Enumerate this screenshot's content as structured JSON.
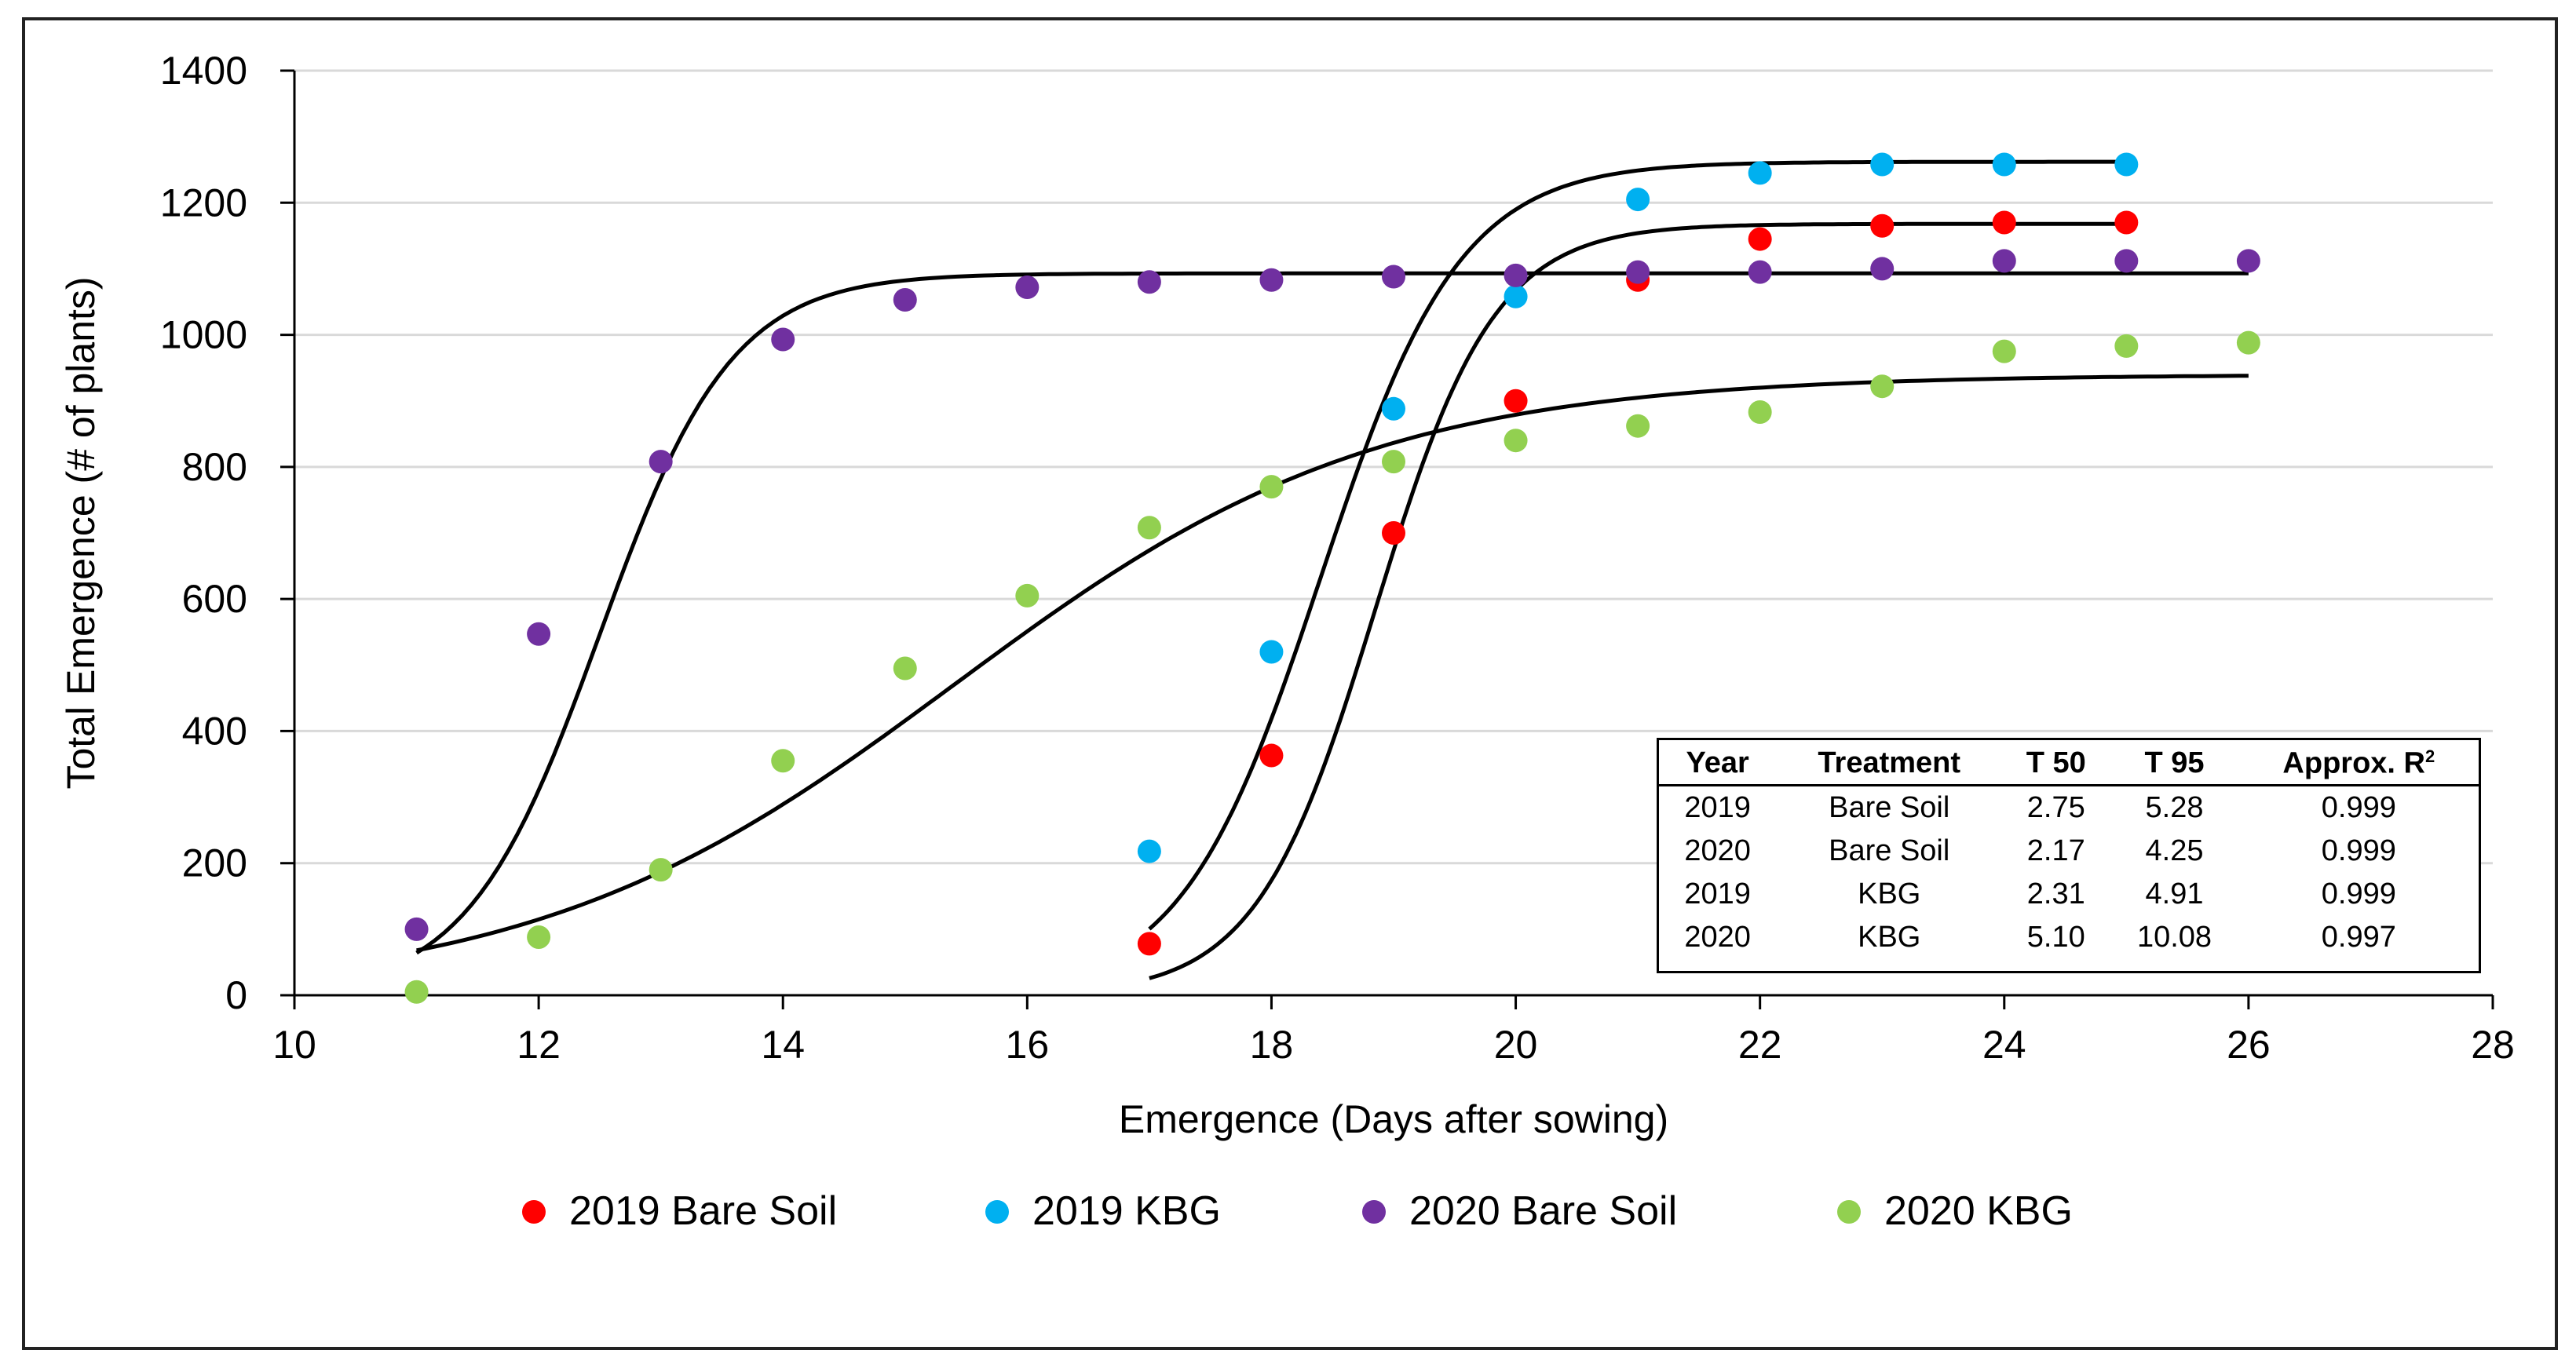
{
  "chart_data": {
    "type": "scatter",
    "title": "",
    "xlabel": "Emergence (Days after sowing)",
    "ylabel": "Total Emergence (# of plants)",
    "xlim": [
      10,
      28
    ],
    "ylim": [
      0,
      1400
    ],
    "xticks": [
      10,
      12,
      14,
      16,
      18,
      20,
      22,
      24,
      26,
      28
    ],
    "yticks": [
      0,
      200,
      400,
      600,
      800,
      1000,
      1200,
      1400
    ],
    "legend_position": "bottom",
    "series": [
      {
        "name": "2019 Bare Soil",
        "color": "#ff0000",
        "x": [
          17,
          18,
          19,
          20,
          21,
          22,
          23,
          24,
          25
        ],
        "y": [
          78,
          363,
          700,
          900,
          1083,
          1145,
          1165,
          1170,
          1170
        ],
        "fit": {
          "K": 1168,
          "x0": 18.85,
          "k": 2.05,
          "x_start": 17,
          "x_end": 25
        }
      },
      {
        "name": "2019 KBG",
        "color": "#00b0f0",
        "x": [
          17,
          18,
          19,
          20,
          21,
          22,
          23,
          24,
          25
        ],
        "y": [
          218,
          520,
          888,
          1058,
          1205,
          1245,
          1258,
          1258,
          1258
        ],
        "fit": {
          "K": 1262,
          "x0": 18.4,
          "k": 1.75,
          "x_start": 17,
          "x_end": 25
        }
      },
      {
        "name": "2020 Bare Soil",
        "color": "#7030a0",
        "x": [
          11,
          12,
          13,
          14,
          15,
          16,
          17,
          18,
          19,
          20,
          21,
          22,
          23,
          24,
          25,
          26
        ],
        "y": [
          100,
          547,
          808,
          993,
          1053,
          1072,
          1080,
          1083,
          1088,
          1090,
          1095,
          1095,
          1100,
          1112,
          1112,
          1112
        ],
        "fit": {
          "K": 1093,
          "x0": 12.5,
          "k": 1.85,
          "x_start": 11,
          "x_end": 26
        }
      },
      {
        "name": "2020 KBG",
        "color": "#92d050",
        "x": [
          11,
          12,
          13,
          14,
          15,
          16,
          17,
          18,
          19,
          20,
          21,
          22,
          23,
          24,
          25,
          26
        ],
        "y": [
          5,
          88,
          190,
          355,
          495,
          605,
          708,
          770,
          808,
          840,
          862,
          883,
          922,
          975,
          983,
          988
        ],
        "fit": {
          "K": 940,
          "x0": 15.4,
          "k": 0.58,
          "x_start": 11,
          "x_end": 26
        }
      }
    ]
  },
  "stats_table": {
    "headers": {
      "year": "Year",
      "treatment": "Treatment",
      "t50": "T 50",
      "t95": "T 95",
      "r2": "Approx. R",
      "r2_sup": "2"
    },
    "rows": [
      {
        "year": "2019",
        "treatment": "Bare Soil",
        "t50": "2.75",
        "t95": "5.28",
        "r2": "0.999"
      },
      {
        "year": "2020",
        "treatment": "Bare Soil",
        "t50": "2.17",
        "t95": "4.25",
        "r2": "0.999"
      },
      {
        "year": "2019",
        "treatment": "KBG",
        "t50": "2.31",
        "t95": "4.91",
        "r2": "0.999"
      },
      {
        "year": "2020",
        "treatment": "KBG",
        "t50": "5.10",
        "t95": "10.08",
        "r2": "0.997"
      }
    ]
  }
}
